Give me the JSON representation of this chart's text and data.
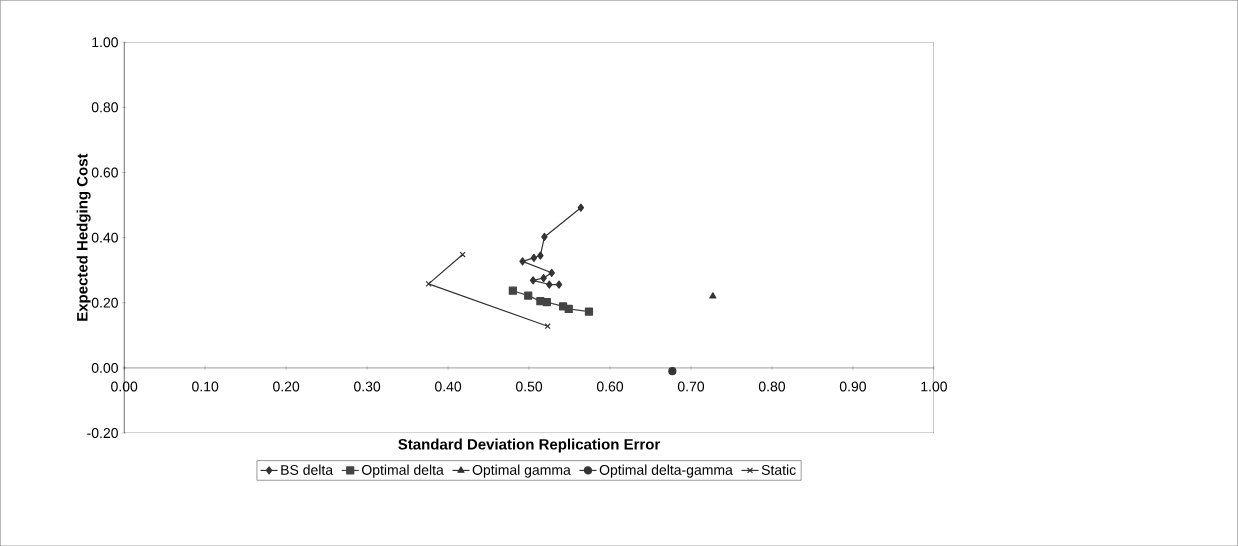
{
  "chart_data": {
    "type": "line",
    "xlabel": "Standard Deviation Replication Error",
    "ylabel": "Expected Hedging Cost",
    "xlim": [
      0,
      1
    ],
    "ylim": [
      -0.2,
      1
    ],
    "xticks": [
      {
        "value": 0,
        "label": "0.00"
      },
      {
        "value": 0.1,
        "label": "0.10"
      },
      {
        "value": 0.2,
        "label": "0.20"
      },
      {
        "value": 0.3,
        "label": "0.30"
      },
      {
        "value": 0.4,
        "label": "0.40"
      },
      {
        "value": 0.5,
        "label": "0.50"
      },
      {
        "value": 0.6,
        "label": "0.60"
      },
      {
        "value": 0.7,
        "label": "0.70"
      },
      {
        "value": 0.8,
        "label": "0.80"
      },
      {
        "value": 0.9,
        "label": "0.90"
      },
      {
        "value": 1,
        "label": "1.00"
      }
    ],
    "yticks": [
      {
        "value": -0.2,
        "label": "-0.20"
      },
      {
        "value": 0,
        "label": "0.00"
      },
      {
        "value": 0.2,
        "label": "0.20"
      },
      {
        "value": 0.4,
        "label": "0.40"
      },
      {
        "value": 0.6,
        "label": "0.60"
      },
      {
        "value": 0.8,
        "label": "0.80"
      },
      {
        "value": 1,
        "label": "1.00"
      }
    ],
    "grid": false,
    "legend": "bottom",
    "line_style": "solid",
    "series": [
      {
        "name": "BS delta",
        "color": "#333333",
        "marker": "diamond",
        "x": [
          0.564,
          0.519,
          0.514,
          0.506,
          0.492,
          0.528,
          0.518,
          0.505,
          0.525,
          0.537
        ],
        "values": [
          0.492,
          0.402,
          0.345,
          0.338,
          0.327,
          0.292,
          0.276,
          0.269,
          0.256,
          0.256
        ]
      },
      {
        "name": "Optimal delta",
        "color": "#444444",
        "marker": "square",
        "x": [
          0.48,
          0.499,
          0.514,
          0.522,
          0.542,
          0.549,
          0.574
        ],
        "values": [
          0.237,
          0.222,
          0.205,
          0.202,
          0.189,
          0.181,
          0.173
        ]
      },
      {
        "name": "Optimal gamma",
        "color": "#333333",
        "marker": "triangle",
        "x": [
          0.727
        ],
        "values": [
          0.22
        ]
      },
      {
        "name": "Optimal delta-gamma",
        "color": "#333333",
        "marker": "circle",
        "x": [
          0.677
        ],
        "values": [
          -0.01
        ]
      },
      {
        "name": "Static",
        "color": "#333333",
        "marker": "cross",
        "x": [
          0.418,
          0.376,
          0.523
        ],
        "values": [
          0.348,
          0.258,
          0.128
        ]
      }
    ]
  }
}
